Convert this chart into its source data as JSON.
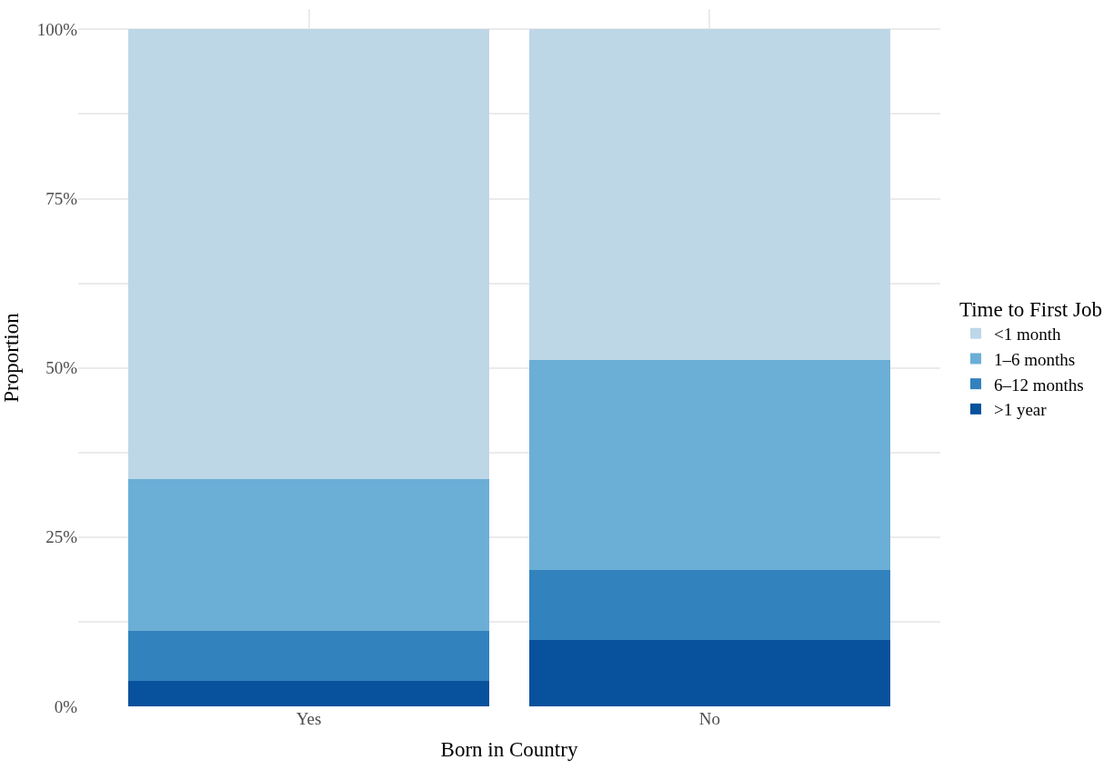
{
  "chart_data": {
    "type": "bar",
    "stacked": true,
    "xlabel": "Born in Country",
    "ylabel": "Proportion",
    "legend_title": "Time to First Job",
    "categories": [
      "Yes",
      "No"
    ],
    "series": [
      {
        "name": ">1 year",
        "color": "#08519c",
        "values": [
          3.7,
          9.8
        ]
      },
      {
        "name": "6–12 months",
        "color": "#3182bd",
        "values": [
          7.5,
          10.3
        ]
      },
      {
        "name": "1–6 months",
        "color": "#6baed6",
        "values": [
          22.4,
          31.0
        ]
      },
      {
        "name": "<1 month",
        "color": "#bdd7e7",
        "values": [
          66.4,
          48.9
        ]
      }
    ],
    "ylim": [
      0,
      103
    ],
    "yticks": [
      {
        "value": 0,
        "label": "0%"
      },
      {
        "value": 12.5,
        "label": null
      },
      {
        "value": 25,
        "label": "25%"
      },
      {
        "value": 37.5,
        "label": null
      },
      {
        "value": 50,
        "label": "50%"
      },
      {
        "value": 62.5,
        "label": null
      },
      {
        "value": 75,
        "label": "75%"
      },
      {
        "value": 87.5,
        "label": null
      },
      {
        "value": 100,
        "label": "100%"
      }
    ],
    "grid": true,
    "legend": "right"
  }
}
